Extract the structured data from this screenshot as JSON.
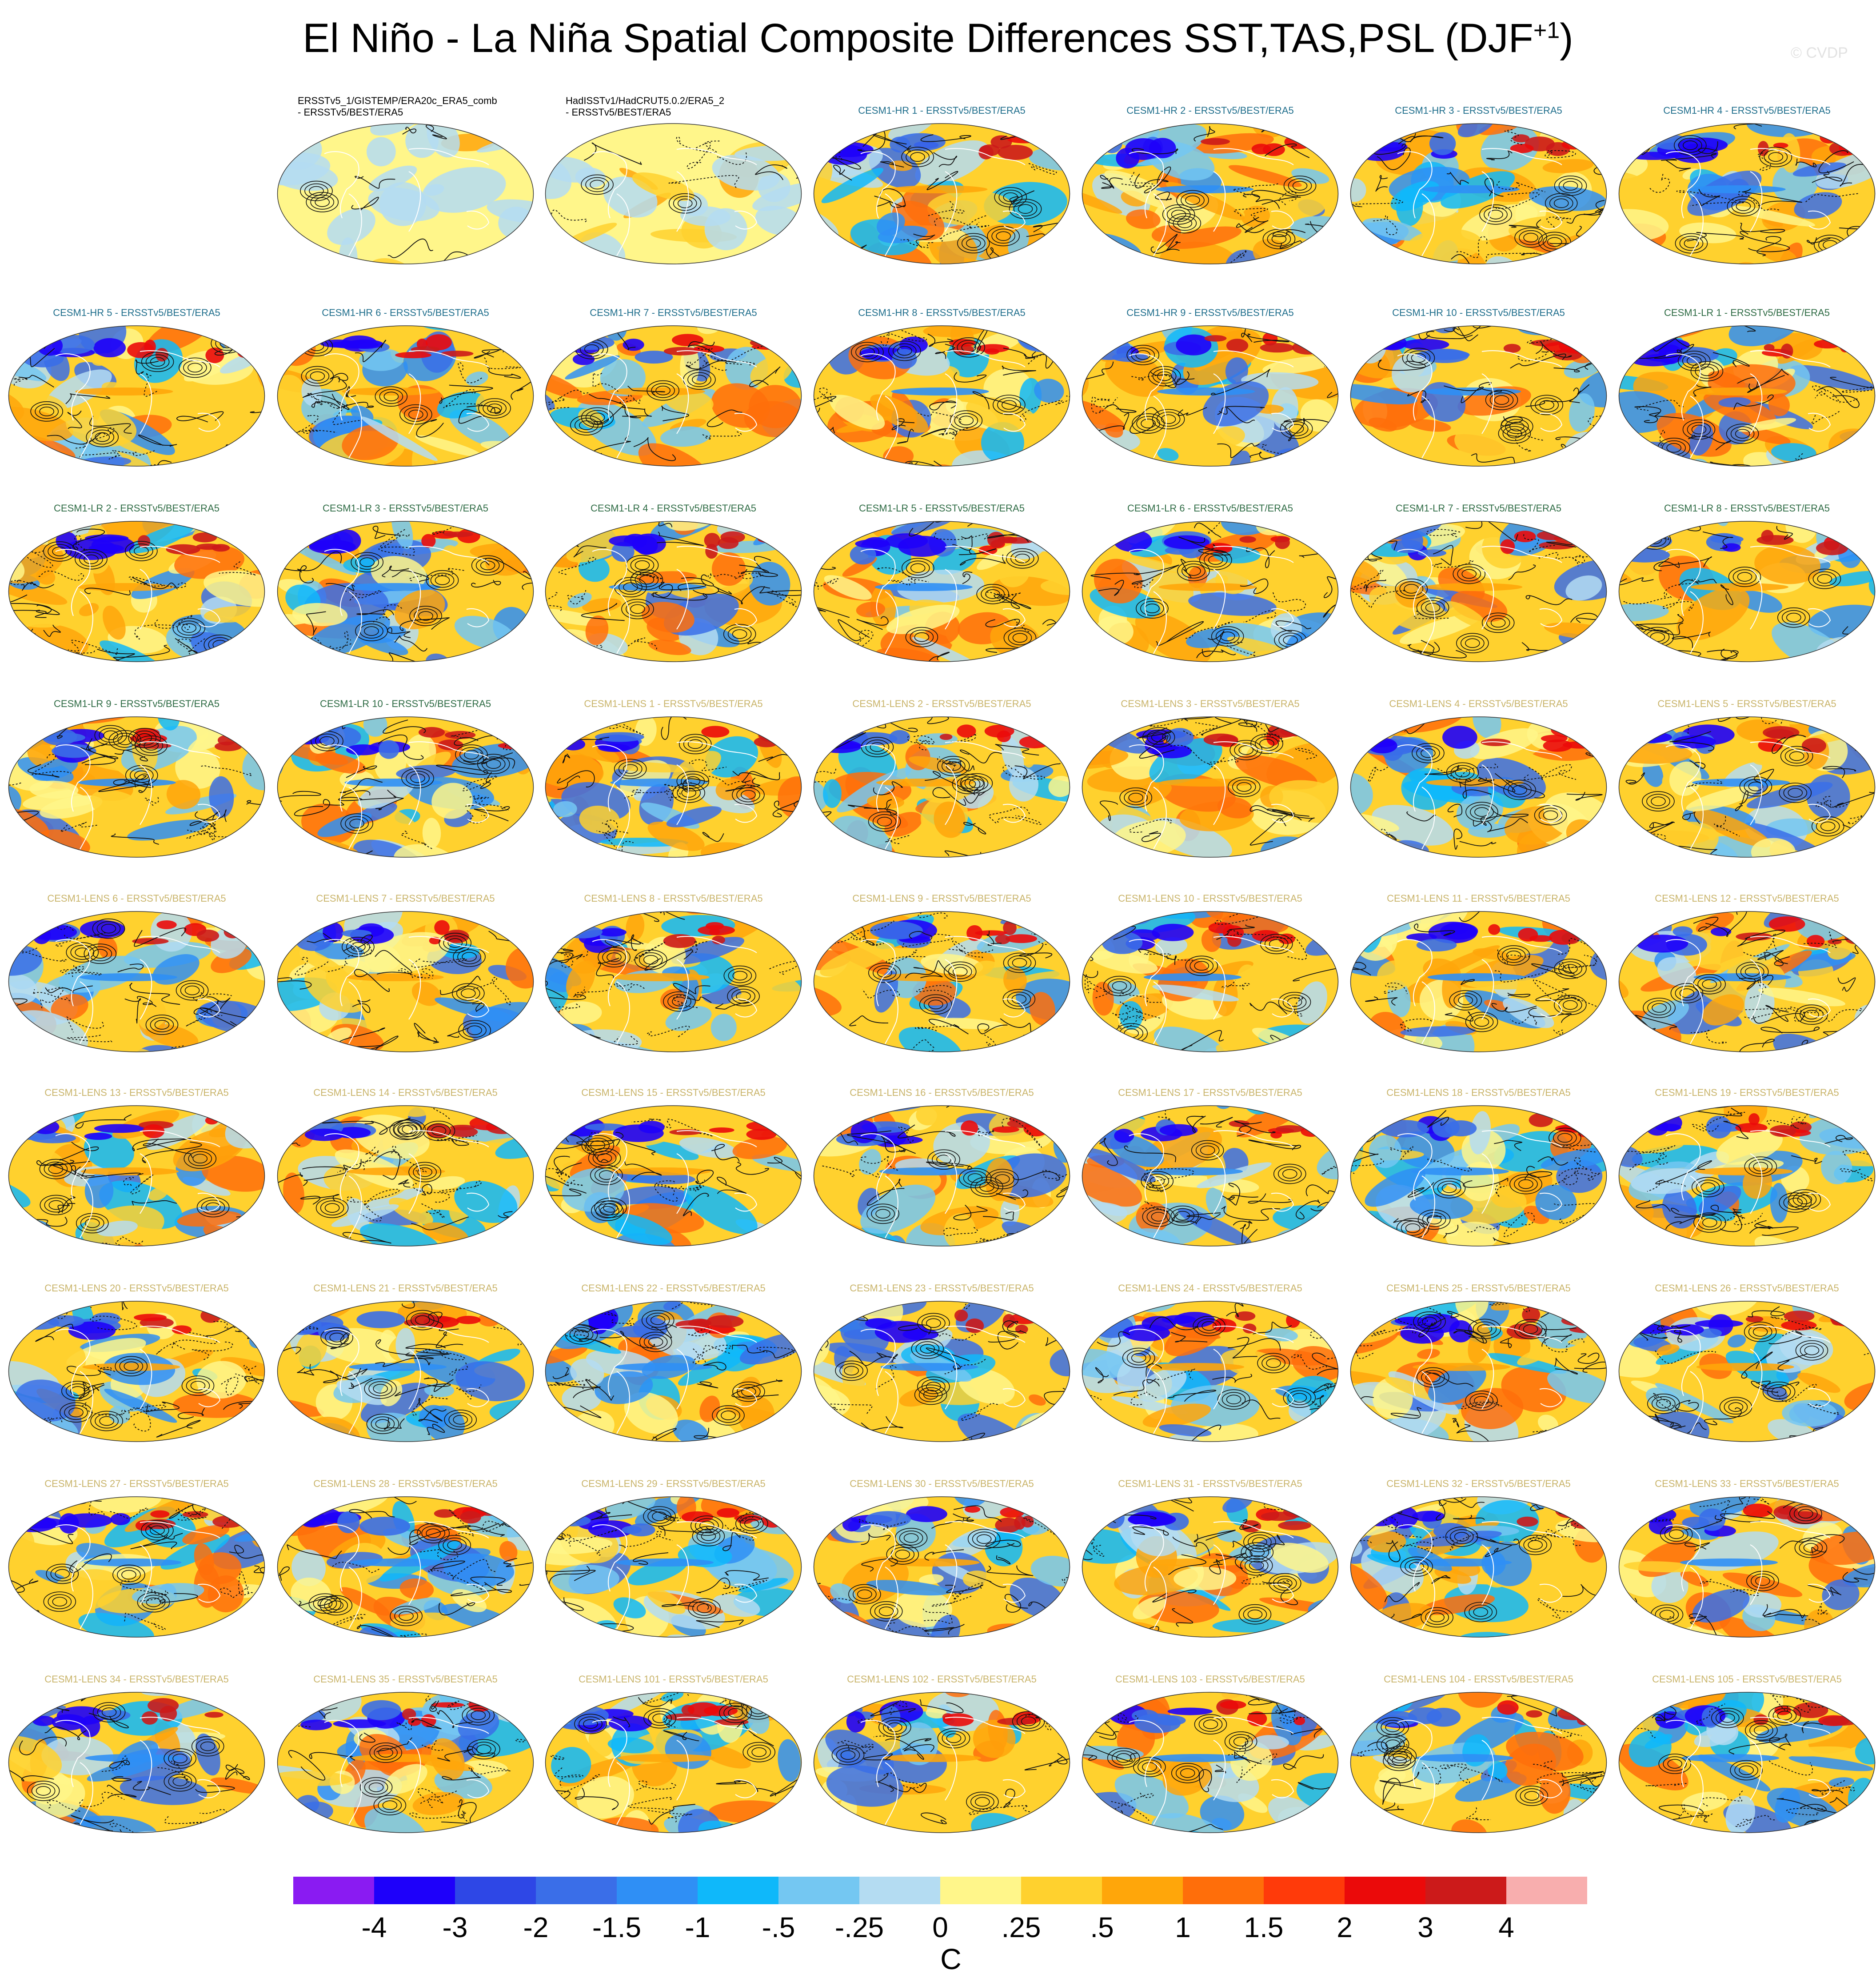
{
  "title": "El Niño - La Niña Spatial Composite Differences SST,TAS,PSL (DJF",
  "title_sup": "+1",
  "title_end": ")",
  "credit": "© CVDP",
  "panels": [
    {
      "label": "ERSSTv5_1/GISTEMP/ERA20c_ERA5_comb - ERSSTv5/BEST/ERA5",
      "group": "obs"
    },
    {
      "label": "HadISSTv1/HadCRUT5.0.2/ERA5_2 - ERSSTv5/BEST/ERA5",
      "group": "obs"
    },
    {
      "label": "CESM1-HR 1 - ERSSTv5/BEST/ERA5",
      "group": "hr"
    },
    {
      "label": "CESM1-HR 2 - ERSSTv5/BEST/ERA5",
      "group": "hr"
    },
    {
      "label": "CESM1-HR 3 - ERSSTv5/BEST/ERA5",
      "group": "hr"
    },
    {
      "label": "CESM1-HR 4 - ERSSTv5/BEST/ERA5",
      "group": "hr"
    },
    {
      "label": "CESM1-HR 5 - ERSSTv5/BEST/ERA5",
      "group": "hr"
    },
    {
      "label": "CESM1-HR 6 - ERSSTv5/BEST/ERA5",
      "group": "hr"
    },
    {
      "label": "CESM1-HR 7 - ERSSTv5/BEST/ERA5",
      "group": "hr"
    },
    {
      "label": "CESM1-HR 8 - ERSSTv5/BEST/ERA5",
      "group": "hr"
    },
    {
      "label": "CESM1-HR 9 - ERSSTv5/BEST/ERA5",
      "group": "hr"
    },
    {
      "label": "CESM1-HR 10 - ERSSTv5/BEST/ERA5",
      "group": "hr"
    },
    {
      "label": "CESM1-LR 1 - ERSSTv5/BEST/ERA5",
      "group": "lr"
    },
    {
      "label": "CESM1-LR 2 - ERSSTv5/BEST/ERA5",
      "group": "lr"
    },
    {
      "label": "CESM1-LR 3 - ERSSTv5/BEST/ERA5",
      "group": "lr"
    },
    {
      "label": "CESM1-LR 4 - ERSSTv5/BEST/ERA5",
      "group": "lr"
    },
    {
      "label": "CESM1-LR 5 - ERSSTv5/BEST/ERA5",
      "group": "lr"
    },
    {
      "label": "CESM1-LR 6 - ERSSTv5/BEST/ERA5",
      "group": "lr"
    },
    {
      "label": "CESM1-LR 7 - ERSSTv5/BEST/ERA5",
      "group": "lr"
    },
    {
      "label": "CESM1-LR 8 - ERSSTv5/BEST/ERA5",
      "group": "lr"
    },
    {
      "label": "CESM1-LR 9 - ERSSTv5/BEST/ERA5",
      "group": "lr"
    },
    {
      "label": "CESM1-LR 10 - ERSSTv5/BEST/ERA5",
      "group": "lr"
    },
    {
      "label": "CESM1-LENS 1 - ERSSTv5/BEST/ERA5",
      "group": "lens"
    },
    {
      "label": "CESM1-LENS 2 - ERSSTv5/BEST/ERA5",
      "group": "lens"
    },
    {
      "label": "CESM1-LENS 3 - ERSSTv5/BEST/ERA5",
      "group": "lens"
    },
    {
      "label": "CESM1-LENS 4 - ERSSTv5/BEST/ERA5",
      "group": "lens"
    },
    {
      "label": "CESM1-LENS 5 - ERSSTv5/BEST/ERA5",
      "group": "lens"
    },
    {
      "label": "CESM1-LENS 6 - ERSSTv5/BEST/ERA5",
      "group": "lens"
    },
    {
      "label": "CESM1-LENS 7 - ERSSTv5/BEST/ERA5",
      "group": "lens"
    },
    {
      "label": "CESM1-LENS 8 - ERSSTv5/BEST/ERA5",
      "group": "lens"
    },
    {
      "label": "CESM1-LENS 9 - ERSSTv5/BEST/ERA5",
      "group": "lens"
    },
    {
      "label": "CESM1-LENS 10 - ERSSTv5/BEST/ERA5",
      "group": "lens"
    },
    {
      "label": "CESM1-LENS 11 - ERSSTv5/BEST/ERA5",
      "group": "lens"
    },
    {
      "label": "CESM1-LENS 12 - ERSSTv5/BEST/ERA5",
      "group": "lens"
    },
    {
      "label": "CESM1-LENS 13 - ERSSTv5/BEST/ERA5",
      "group": "lens"
    },
    {
      "label": "CESM1-LENS 14 - ERSSTv5/BEST/ERA5",
      "group": "lens"
    },
    {
      "label": "CESM1-LENS 15 - ERSSTv5/BEST/ERA5",
      "group": "lens"
    },
    {
      "label": "CESM1-LENS 16 - ERSSTv5/BEST/ERA5",
      "group": "lens"
    },
    {
      "label": "CESM1-LENS 17 - ERSSTv5/BEST/ERA5",
      "group": "lens"
    },
    {
      "label": "CESM1-LENS 18 - ERSSTv5/BEST/ERA5",
      "group": "lens"
    },
    {
      "label": "CESM1-LENS 19 - ERSSTv5/BEST/ERA5",
      "group": "lens"
    },
    {
      "label": "CESM1-LENS 20 - ERSSTv5/BEST/ERA5",
      "group": "lens"
    },
    {
      "label": "CESM1-LENS 21 - ERSSTv5/BEST/ERA5",
      "group": "lens"
    },
    {
      "label": "CESM1-LENS 22 - ERSSTv5/BEST/ERA5",
      "group": "lens"
    },
    {
      "label": "CESM1-LENS 23 - ERSSTv5/BEST/ERA5",
      "group": "lens"
    },
    {
      "label": "CESM1-LENS 24 - ERSSTv5/BEST/ERA5",
      "group": "lens"
    },
    {
      "label": "CESM1-LENS 25 - ERSSTv5/BEST/ERA5",
      "group": "lens"
    },
    {
      "label": "CESM1-LENS 26 - ERSSTv5/BEST/ERA5",
      "group": "lens"
    },
    {
      "label": "CESM1-LENS 27 - ERSSTv5/BEST/ERA5",
      "group": "lens"
    },
    {
      "label": "CESM1-LENS 28 - ERSSTv5/BEST/ERA5",
      "group": "lens"
    },
    {
      "label": "CESM1-LENS 29 - ERSSTv5/BEST/ERA5",
      "group": "lens"
    },
    {
      "label": "CESM1-LENS 30 - ERSSTv5/BEST/ERA5",
      "group": "lens"
    },
    {
      "label": "CESM1-LENS 31 - ERSSTv5/BEST/ERA5",
      "group": "lens"
    },
    {
      "label": "CESM1-LENS 32 - ERSSTv5/BEST/ERA5",
      "group": "lens"
    },
    {
      "label": "CESM1-LENS 33 - ERSSTv5/BEST/ERA5",
      "group": "lens"
    },
    {
      "label": "CESM1-LENS 34 - ERSSTv5/BEST/ERA5",
      "group": "lens"
    },
    {
      "label": "CESM1-LENS 35 - ERSSTv5/BEST/ERA5",
      "group": "lens"
    },
    {
      "label": "CESM1-LENS 101 - ERSSTv5/BEST/ERA5",
      "group": "lens"
    },
    {
      "label": "CESM1-LENS 102 - ERSSTv5/BEST/ERA5",
      "group": "lens"
    },
    {
      "label": "CESM1-LENS 103 - ERSSTv5/BEST/ERA5",
      "group": "lens"
    },
    {
      "label": "CESM1-LENS 104 - ERSSTv5/BEST/ERA5",
      "group": "lens"
    },
    {
      "label": "CESM1-LENS 105 - ERSSTv5/BEST/ERA5",
      "group": "lens"
    }
  ],
  "colorbar": {
    "unit": "C",
    "colors": [
      "#8a1bf2",
      "#1e00fa",
      "#2e47e6",
      "#3a6ee8",
      "#2f8ff5",
      "#0fb8fa",
      "#74c7f2",
      "#b4dcf2",
      "#fff68a",
      "#ffd12e",
      "#ffa60a",
      "#ff6e0a",
      "#ff3a0a",
      "#eb0a0a",
      "#cc1a1a",
      "#f8aeae"
    ],
    "ticks": [
      "-4",
      "-3",
      "-2",
      "-1.5",
      "-1",
      "-.5",
      "-.25",
      "0",
      ".25",
      ".5",
      "1",
      "1.5",
      "2",
      "3",
      "4"
    ]
  }
}
